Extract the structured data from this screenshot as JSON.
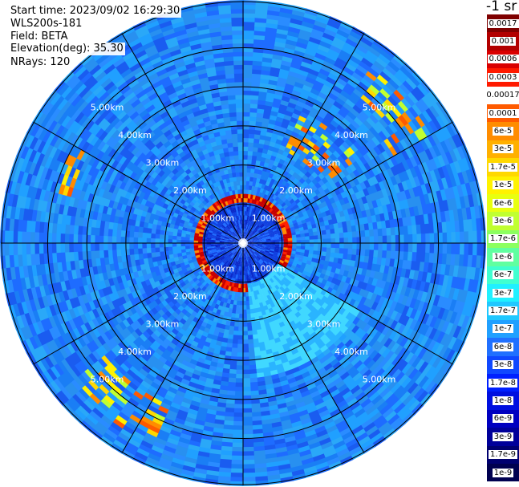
{
  "info": {
    "start_time": "Start time: 2023/09/02 16:29:30",
    "station": "WLS200s-181",
    "field": "Field: BETA",
    "elevation": "Elevation(deg): 35.30",
    "nrays": "NRays: 120"
  },
  "colorbar": {
    "units": "-1 sr",
    "labels": [
      "0.0017",
      "0.001",
      "0.0006",
      "0.0003",
      "0.00017",
      "0.0001",
      "6e-5",
      "3e-5",
      "1.7e-5",
      "1e-5",
      "6e-6",
      "3e-6",
      "1.7e-6",
      "1e-6",
      "6e-7",
      "3e-7",
      "1.7e-7",
      "1e-7",
      "6e-8",
      "3e-8",
      "1.7e-8",
      "1e-8",
      "6e-9",
      "3e-9",
      "1.7e-9",
      "1e-9"
    ],
    "colors": [
      "#7f0000",
      "#b20000",
      "#d90000",
      "#ff1a00",
      "#ffffff",
      "#ff5a00",
      "#ff8c00",
      "#ffb000",
      "#ffd800",
      "#fff200",
      "#e8ff10",
      "#c0ff30",
      "#8cff60",
      "#60ffa0",
      "#40ffd0",
      "#20f0ff",
      "#20c8ff",
      "#20a0ff",
      "#2070ff",
      "#1048ff",
      "#0020ff",
      "#0010e0",
      "#0000c0",
      "#00009a",
      "#000070",
      "#000050"
    ]
  },
  "chart_data": {
    "type": "heatmap",
    "projection": "polar",
    "nrays": 120,
    "range_rings_km": [
      1,
      2,
      3,
      4,
      5
    ],
    "ring_labels": [
      "1.00km",
      "2.00km",
      "3.00km",
      "4.00km",
      "5.00km"
    ],
    "max_range_km": 6.2,
    "spoke_angles_deg": [
      0,
      30,
      60,
      90,
      120,
      150,
      180,
      210,
      240,
      270,
      300,
      330
    ],
    "field": "BETA",
    "features": [
      {
        "kind": "background",
        "range_km": [
          0.6,
          6.2
        ],
        "azimuth_deg": [
          0,
          360
        ],
        "level": "1e-7"
      },
      {
        "kind": "ring",
        "range_km": [
          1.08,
          1.28
        ],
        "azimuth_deg": [
          0,
          360
        ],
        "level": "0.00017"
      },
      {
        "kind": "patch",
        "range_km": [
          2.6,
          3.7
        ],
        "azimuth_deg": [
          25,
          55
        ],
        "level": "1.7e-5"
      },
      {
        "kind": "patch",
        "range_km": [
          4.4,
          5.6
        ],
        "azimuth_deg": [
          35,
          60
        ],
        "level": "3e-5"
      },
      {
        "kind": "patch",
        "range_km": [
          4.6,
          5.7
        ],
        "azimuth_deg": [
          205,
          230
        ],
        "level": "1e-5"
      },
      {
        "kind": "patch",
        "range_km": [
          4.6,
          5.0
        ],
        "azimuth_deg": [
          285,
          300
        ],
        "level": "3e-6"
      },
      {
        "kind": "patch",
        "range_km": [
          1.0,
          3.5
        ],
        "azimuth_deg": [
          120,
          175
        ],
        "level": "1.7e-7"
      }
    ]
  }
}
